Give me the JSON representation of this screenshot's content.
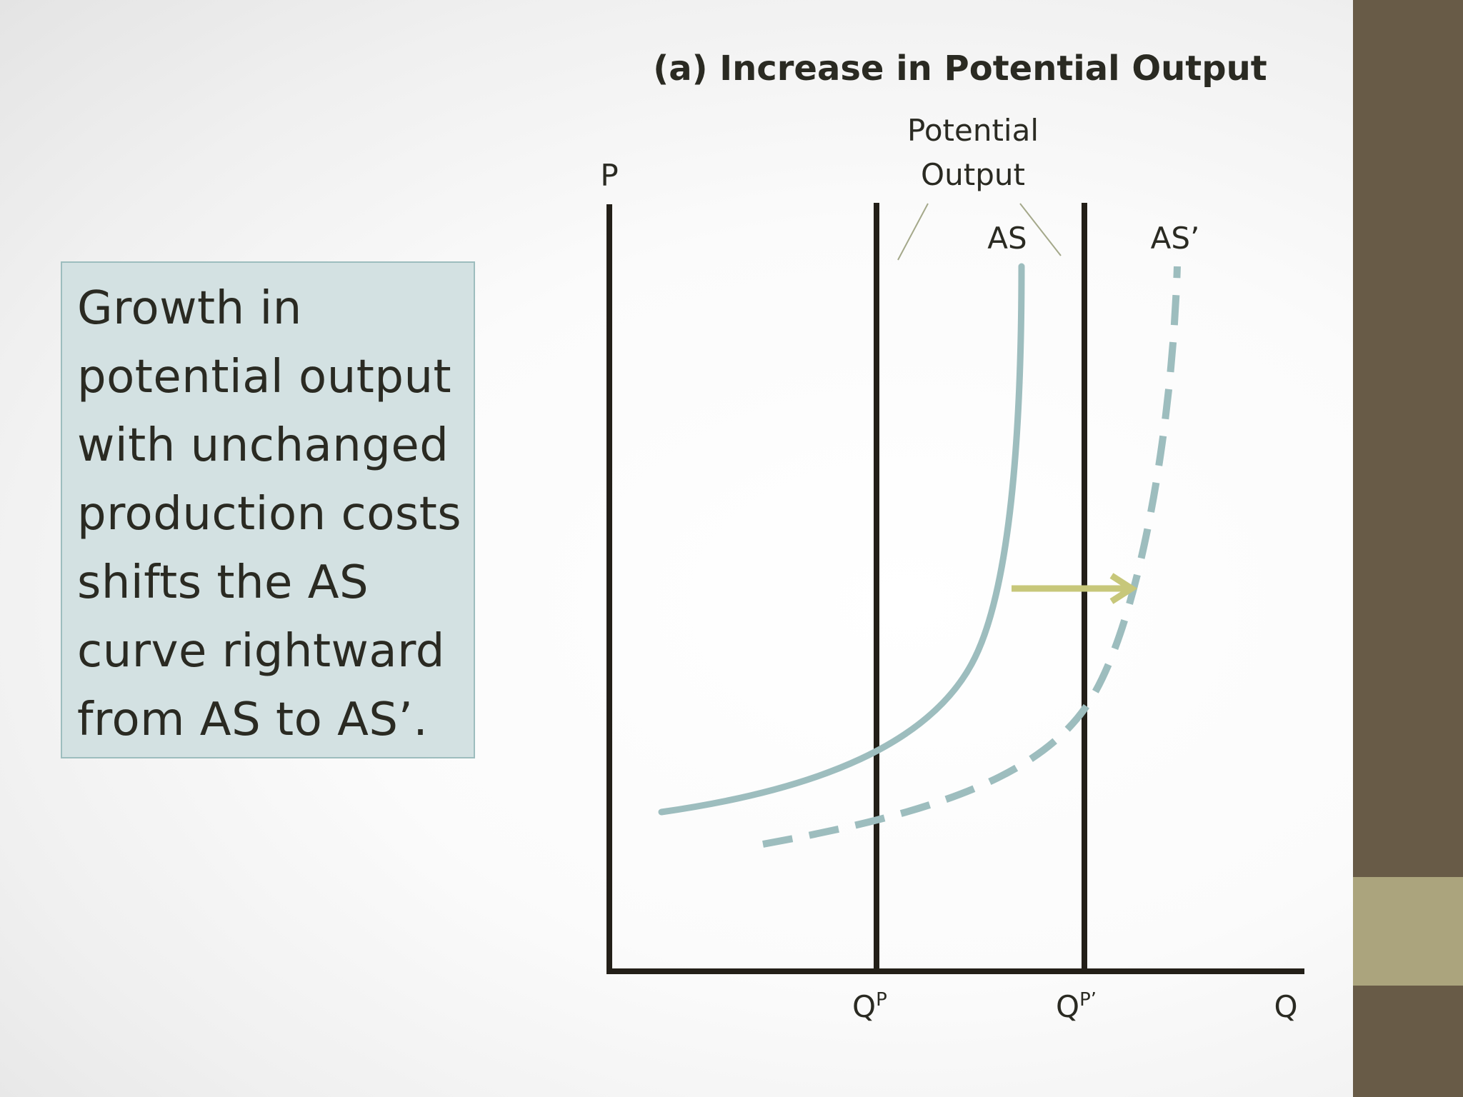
{
  "description_box": {
    "lines": [
      "Growth in",
      "potential output",
      "with unchanged",
      "production costs",
      "shifts the AS",
      "curve rightward",
      "from AS to AS’."
    ]
  },
  "diagram": {
    "title": "(a) Increase in Potential Output",
    "potential_output_label": [
      "Potential",
      "Output"
    ],
    "y_axis_label": "P",
    "x_axis_label": "Q",
    "qp_label": "Q",
    "qp_sup": "P",
    "qp_prime_label": "Q",
    "qp_prime_sup": "P’",
    "as_label": "AS",
    "as_prime_label": "AS’"
  },
  "colors": {
    "curve": "#9dbdbe",
    "arrow": "#c7c77a",
    "axis": "#231f18",
    "band_dark": "#685b47",
    "band_accent": "#aba47d",
    "text_box_bg": "#d3e1e2"
  }
}
